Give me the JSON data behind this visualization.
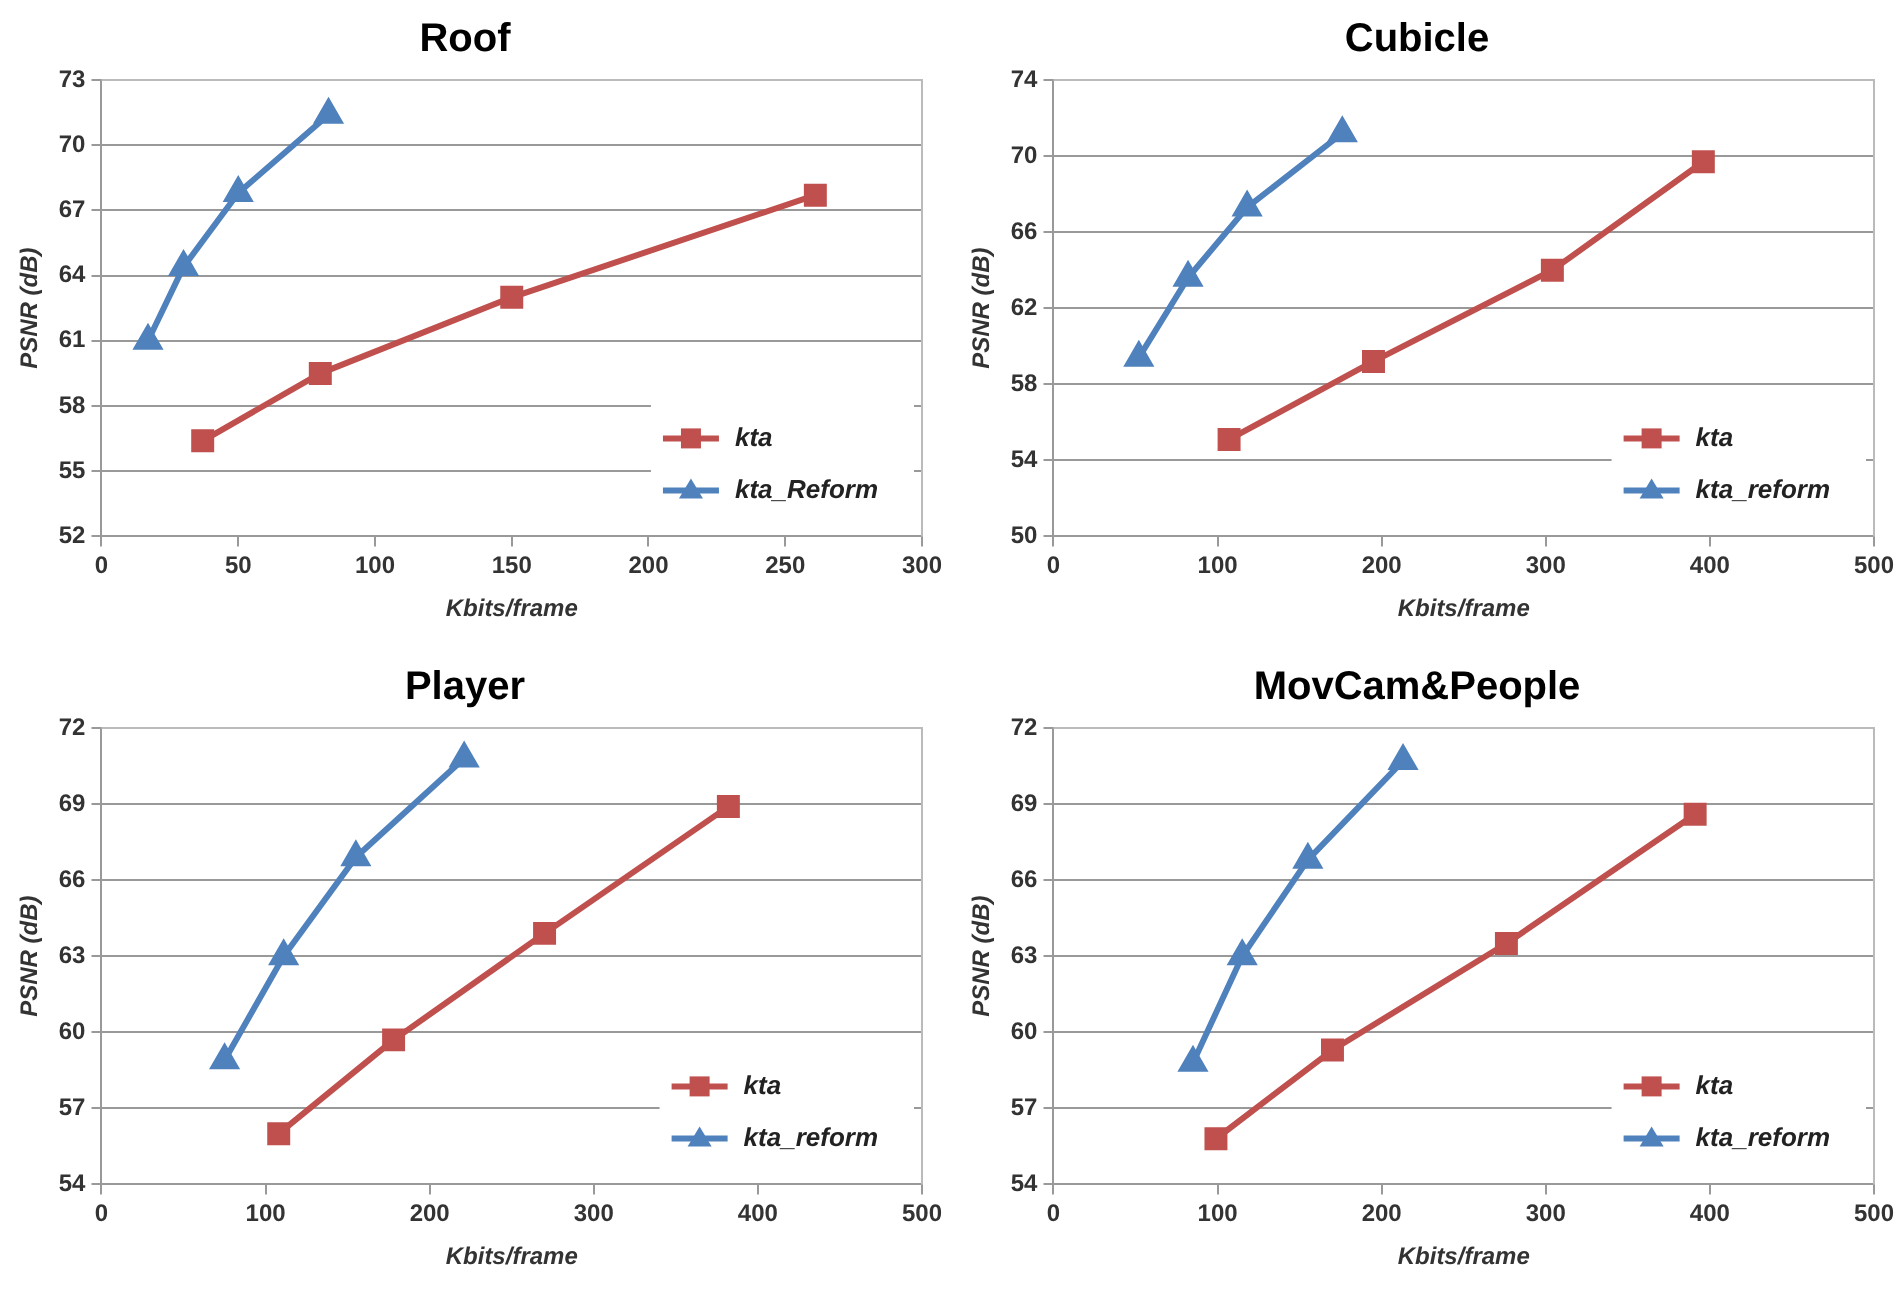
{
  "chart_data": [
    {
      "type": "line",
      "title": "Roof",
      "xlabel": "Kbits/frame",
      "ylabel": "PSNR (dB)",
      "xlim": [
        0,
        300
      ],
      "xticks": [
        0,
        50,
        100,
        150,
        200,
        250,
        300
      ],
      "ylim": [
        52,
        73
      ],
      "yticks": [
        52,
        55,
        58,
        61,
        64,
        67,
        70,
        73
      ],
      "grid": "y",
      "legend": "bottom right",
      "series": [
        {
          "name": "kta",
          "color": "#c0504d",
          "marker": "square",
          "x": [
            37,
            80,
            150,
            261
          ],
          "values": [
            56.4,
            59.5,
            63.0,
            67.7
          ]
        },
        {
          "name": "kta_Reform",
          "color": "#4f81bd",
          "marker": "triangle",
          "x": [
            17,
            30,
            50,
            83
          ],
          "values": [
            61.0,
            64.4,
            67.8,
            71.4
          ]
        }
      ]
    },
    {
      "type": "line",
      "title": "Cubicle",
      "xlabel": "Kbits/frame",
      "ylabel": "PSNR (dB)",
      "xlim": [
        0,
        500
      ],
      "xticks": [
        0,
        100,
        200,
        300,
        400,
        500
      ],
      "ylim": [
        50,
        74
      ],
      "yticks": [
        50,
        54,
        58,
        62,
        66,
        70,
        74
      ],
      "grid": "y",
      "legend": "bottom right",
      "series": [
        {
          "name": "kta",
          "color": "#c0504d",
          "marker": "square",
          "x": [
            107,
            195,
            304,
            396
          ],
          "values": [
            55.1,
            59.2,
            64.0,
            69.7
          ]
        },
        {
          "name": "kta_reform",
          "color": "#4f81bd",
          "marker": "triangle",
          "x": [
            52,
            82,
            118,
            176
          ],
          "values": [
            59.4,
            63.6,
            67.3,
            71.2
          ]
        }
      ]
    },
    {
      "type": "line",
      "title": "Player",
      "xlabel": "Kbits/frame",
      "ylabel": "PSNR (dB)",
      "xlim": [
        0,
        500
      ],
      "xticks": [
        0,
        100,
        200,
        300,
        400,
        500
      ],
      "ylim": [
        54,
        72
      ],
      "yticks": [
        54,
        57,
        60,
        63,
        66,
        69,
        72
      ],
      "grid": "y",
      "legend": "bottom right",
      "series": [
        {
          "name": "kta",
          "color": "#c0504d",
          "marker": "square",
          "x": [
            108,
            178,
            270,
            382
          ],
          "values": [
            56.0,
            59.7,
            63.9,
            68.9
          ]
        },
        {
          "name": "kta_reform",
          "color": "#4f81bd",
          "marker": "triangle",
          "x": [
            75,
            111,
            155,
            221
          ],
          "values": [
            58.9,
            63.0,
            66.9,
            70.8
          ]
        }
      ]
    },
    {
      "type": "line",
      "title": "MovCam&People",
      "xlabel": "Kbits/frame",
      "ylabel": "PSNR (dB)",
      "xlim": [
        0,
        500
      ],
      "xticks": [
        0,
        100,
        200,
        300,
        400,
        500
      ],
      "ylim": [
        54,
        72
      ],
      "yticks": [
        54,
        57,
        60,
        63,
        66,
        69,
        72
      ],
      "grid": "y",
      "legend": "bottom right",
      "series": [
        {
          "name": "kta",
          "color": "#c0504d",
          "marker": "square",
          "x": [
            99,
            170,
            276,
            391
          ],
          "values": [
            55.8,
            59.3,
            63.5,
            68.6
          ]
        },
        {
          "name": "kta_reform",
          "color": "#4f81bd",
          "marker": "triangle",
          "x": [
            85,
            115,
            155,
            213
          ],
          "values": [
            58.8,
            63.0,
            66.8,
            70.7
          ]
        }
      ]
    }
  ]
}
